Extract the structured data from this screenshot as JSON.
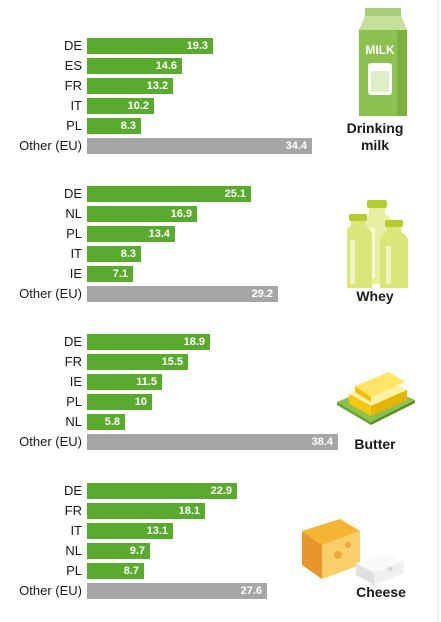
{
  "chart_data": [
    {
      "type": "bar",
      "orientation": "horizontal",
      "product": "Drinking milk",
      "product_lines": [
        "Drinking",
        "milk"
      ],
      "icon": "milk-carton-icon",
      "categories": [
        "DE",
        "ES",
        "FR",
        "IT",
        "PL",
        "Other (EU)"
      ],
      "values": [
        19.3,
        14.6,
        13.2,
        10.2,
        8.3,
        34.4
      ]
    },
    {
      "type": "bar",
      "orientation": "horizontal",
      "product": "Whey",
      "product_lines": [
        "Whey"
      ],
      "icon": "whey-bottles-icon",
      "categories": [
        "DE",
        "NL",
        "PL",
        "IT",
        "IE",
        "Other (EU)"
      ],
      "values": [
        25.1,
        16.9,
        13.4,
        8.3,
        7.1,
        29.2
      ]
    },
    {
      "type": "bar",
      "orientation": "horizontal",
      "product": "Butter",
      "product_lines": [
        "Butter"
      ],
      "icon": "butter-block-icon",
      "categories": [
        "DE",
        "FR",
        "IE",
        "PL",
        "NL",
        "Other (EU)"
      ],
      "values": [
        18.9,
        15.5,
        11.5,
        10,
        5.8,
        38.4
      ]
    },
    {
      "type": "bar",
      "orientation": "horizontal",
      "product": "Cheese",
      "product_lines": [
        "Cheese"
      ],
      "icon": "cheese-wedge-icon",
      "categories": [
        "DE",
        "FR",
        "IT",
        "NL",
        "PL",
        "Other (EU)"
      ],
      "values": [
        22.9,
        18.1,
        13.1,
        9.7,
        8.7,
        27.6
      ]
    }
  ],
  "milk_icon_text": "MILK",
  "colors": {
    "country_bar": "#5aaa2f",
    "other_bar": "#a6a6a6",
    "value_text": "#ffffff"
  }
}
